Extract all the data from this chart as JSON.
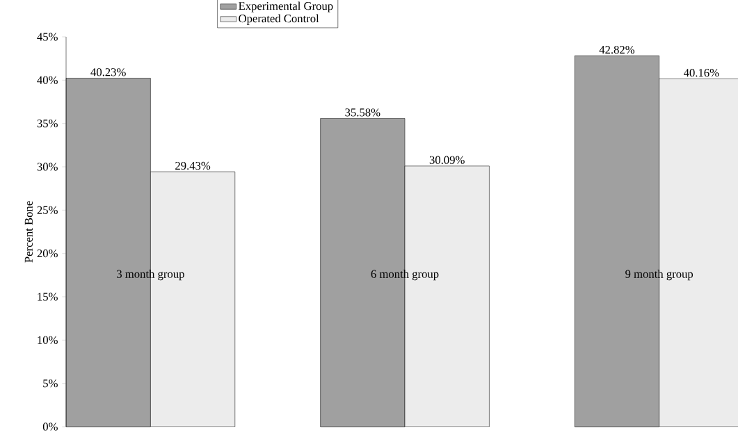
{
  "chart_data": {
    "type": "bar",
    "ylabel": "Percent Bone",
    "categories": [
      "3 month group",
      "6 month group",
      "9 month group"
    ],
    "series": [
      {
        "name": "Experimental Group",
        "color": "#a0a0a0",
        "values": [
          40.23,
          35.58,
          42.82
        ],
        "value_labels": [
          "40.23%",
          "35.58%",
          "42.82%"
        ]
      },
      {
        "name": "Operated Control",
        "color": "#ececec",
        "values": [
          29.43,
          30.09,
          40.16
        ],
        "value_labels": [
          "29.43%",
          "30.09%",
          "40.16%"
        ]
      }
    ],
    "ylim": [
      0,
      45
    ],
    "yticks": [
      {
        "value": 0,
        "label": "0%"
      },
      {
        "value": 5,
        "label": "5%"
      },
      {
        "value": 10,
        "label": "10%"
      },
      {
        "value": 15,
        "label": "15%"
      },
      {
        "value": 20,
        "label": "20%"
      },
      {
        "value": 25,
        "label": "25%"
      },
      {
        "value": 30,
        "label": "30%"
      },
      {
        "value": 35,
        "label": "35%"
      },
      {
        "value": 40,
        "label": "40%"
      },
      {
        "value": 45,
        "label": "45%"
      }
    ],
    "legend": "top"
  }
}
